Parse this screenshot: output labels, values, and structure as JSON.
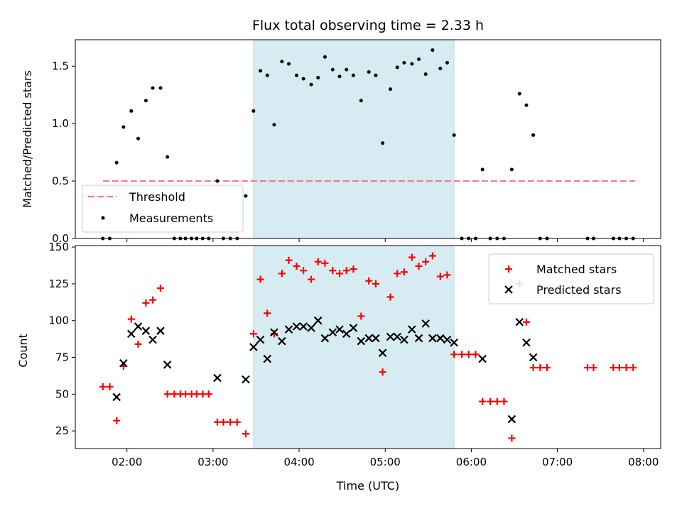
{
  "chart_data": {
    "title": "Flux total observing time = 2.33 h",
    "type": "scatter",
    "x_unit": "hours (UTC)",
    "x_range": [
      1.4,
      8.2
    ],
    "x_ticks": [
      2,
      3,
      4,
      5,
      6,
      7,
      8
    ],
    "x_tick_labels": [
      "02:00",
      "03:00",
      "04:00",
      "05:00",
      "06:00",
      "07:00",
      "08:00"
    ],
    "xlabel": "Time (UTC)",
    "shaded_interval": {
      "start": 3.47,
      "end": 5.8,
      "color": "#add8e6"
    },
    "panels": [
      {
        "ylabel": "Matched/Predicted stars",
        "ylim": [
          0,
          1.73
        ],
        "y_ticks": [
          0.0,
          0.5,
          1.0,
          1.5
        ],
        "y_tick_labels": [
          "0.0",
          "0.5",
          "1.0",
          "1.5"
        ],
        "legend_position": "bottom-left",
        "threshold": {
          "name": "Threshold",
          "value": 0.5,
          "x_start": 1.72,
          "x_end": 7.9,
          "color": "#f08080"
        },
        "series": [
          {
            "name": "Measurements",
            "marker": "dot",
            "color": "#000000",
            "points": [
              [
                1.72,
                0.0
              ],
              [
                1.8,
                0.0
              ],
              [
                1.88,
                0.66
              ],
              [
                1.96,
                0.97
              ],
              [
                2.05,
                1.11
              ],
              [
                2.13,
                0.87
              ],
              [
                2.22,
                1.2
              ],
              [
                2.3,
                1.31
              ],
              [
                2.39,
                1.31
              ],
              [
                2.47,
                0.71
              ],
              [
                2.55,
                0.0
              ],
              [
                2.62,
                0.0
              ],
              [
                2.68,
                0.0
              ],
              [
                2.75,
                0.0
              ],
              [
                2.81,
                0.0
              ],
              [
                2.88,
                0.0
              ],
              [
                2.95,
                0.0
              ],
              [
                3.05,
                0.5
              ],
              [
                3.12,
                0.0
              ],
              [
                3.2,
                0.0
              ],
              [
                3.28,
                0.0
              ],
              [
                3.38,
                0.37
              ],
              [
                3.47,
                1.11
              ],
              [
                3.55,
                1.46
              ],
              [
                3.63,
                1.42
              ],
              [
                3.71,
                0.99
              ],
              [
                3.8,
                1.54
              ],
              [
                3.88,
                1.52
              ],
              [
                3.97,
                1.42
              ],
              [
                4.05,
                1.39
              ],
              [
                4.14,
                1.34
              ],
              [
                4.22,
                1.4
              ],
              [
                4.3,
                1.58
              ],
              [
                4.39,
                1.47
              ],
              [
                4.47,
                1.41
              ],
              [
                4.55,
                1.47
              ],
              [
                4.63,
                1.42
              ],
              [
                4.72,
                1.2
              ],
              [
                4.81,
                1.45
              ],
              [
                4.89,
                1.42
              ],
              [
                4.97,
                0.83
              ],
              [
                5.06,
                1.3
              ],
              [
                5.14,
                1.49
              ],
              [
                5.22,
                1.53
              ],
              [
                5.31,
                1.52
              ],
              [
                5.39,
                1.56
              ],
              [
                5.47,
                1.43
              ],
              [
                5.55,
                1.64
              ],
              [
                5.64,
                1.48
              ],
              [
                5.72,
                1.53
              ],
              [
                5.8,
                0.9
              ],
              [
                5.89,
                0.0
              ],
              [
                5.97,
                0.0
              ],
              [
                6.05,
                0.0
              ],
              [
                6.13,
                0.6
              ],
              [
                6.22,
                0.0
              ],
              [
                6.3,
                0.0
              ],
              [
                6.38,
                0.0
              ],
              [
                6.47,
                0.6
              ],
              [
                6.56,
                1.26
              ],
              [
                6.64,
                1.16
              ],
              [
                6.72,
                0.9
              ],
              [
                6.8,
                0.0
              ],
              [
                6.88,
                0.0
              ],
              [
                7.35,
                0.0
              ],
              [
                7.42,
                0.0
              ],
              [
                7.65,
                0.0
              ],
              [
                7.72,
                0.0
              ],
              [
                7.8,
                0.0
              ],
              [
                7.88,
                0.0
              ]
            ]
          }
        ]
      },
      {
        "ylabel": "Count",
        "ylim": [
          13,
          151
        ],
        "y_ticks": [
          25,
          50,
          75,
          100,
          125,
          150
        ],
        "y_tick_labels": [
          "25",
          "50",
          "75",
          "100",
          "125",
          "150"
        ],
        "legend_position": "top-right",
        "series": [
          {
            "name": "Matched stars",
            "marker": "plus",
            "color": "#ff0000",
            "points": [
              [
                1.72,
                55
              ],
              [
                1.8,
                55
              ],
              [
                1.88,
                32
              ],
              [
                1.96,
                69
              ],
              [
                2.05,
                101
              ],
              [
                2.13,
                84
              ],
              [
                2.22,
                112
              ],
              [
                2.3,
                114
              ],
              [
                2.39,
                122
              ],
              [
                2.47,
                50
              ],
              [
                2.55,
                50
              ],
              [
                2.62,
                50
              ],
              [
                2.68,
                50
              ],
              [
                2.75,
                50
              ],
              [
                2.81,
                50
              ],
              [
                2.88,
                50
              ],
              [
                2.95,
                50
              ],
              [
                3.05,
                31
              ],
              [
                3.12,
                31
              ],
              [
                3.2,
                31
              ],
              [
                3.28,
                31
              ],
              [
                3.38,
                23
              ],
              [
                3.47,
                91
              ],
              [
                3.55,
                128
              ],
              [
                3.63,
                105
              ],
              [
                3.71,
                91
              ],
              [
                3.8,
                132
              ],
              [
                3.88,
                141
              ],
              [
                3.97,
                137
              ],
              [
                4.05,
                134
              ],
              [
                4.14,
                128
              ],
              [
                4.22,
                140
              ],
              [
                4.3,
                139
              ],
              [
                4.39,
                134
              ],
              [
                4.47,
                132
              ],
              [
                4.55,
                134
              ],
              [
                4.63,
                135
              ],
              [
                4.72,
                103
              ],
              [
                4.81,
                127
              ],
              [
                4.89,
                125
              ],
              [
                4.97,
                65
              ],
              [
                5.06,
                116
              ],
              [
                5.14,
                132
              ],
              [
                5.22,
                133
              ],
              [
                5.31,
                143
              ],
              [
                5.39,
                137
              ],
              [
                5.47,
                140
              ],
              [
                5.55,
                144
              ],
              [
                5.64,
                130
              ],
              [
                5.72,
                131
              ],
              [
                5.8,
                77
              ],
              [
                5.89,
                77
              ],
              [
                5.97,
                77
              ],
              [
                6.05,
                77
              ],
              [
                6.13,
                45
              ],
              [
                6.22,
                45
              ],
              [
                6.3,
                45
              ],
              [
                6.38,
                45
              ],
              [
                6.47,
                20
              ],
              [
                6.56,
                125
              ],
              [
                6.64,
                99
              ],
              [
                6.72,
                68
              ],
              [
                6.8,
                68
              ],
              [
                6.88,
                68
              ],
              [
                7.35,
                68
              ],
              [
                7.42,
                68
              ],
              [
                7.65,
                68
              ],
              [
                7.72,
                68
              ],
              [
                7.8,
                68
              ],
              [
                7.88,
                68
              ]
            ]
          },
          {
            "name": "Predicted stars",
            "marker": "x",
            "color": "#000000",
            "points": [
              [
                1.88,
                48
              ],
              [
                1.96,
                71
              ],
              [
                2.05,
                91
              ],
              [
                2.13,
                96
              ],
              [
                2.22,
                93
              ],
              [
                2.3,
                87
              ],
              [
                2.39,
                93
              ],
              [
                2.47,
                70
              ],
              [
                3.05,
                61
              ],
              [
                3.38,
                60
              ],
              [
                3.47,
                82
              ],
              [
                3.55,
                87
              ],
              [
                3.63,
                74
              ],
              [
                3.71,
                92
              ],
              [
                3.8,
                86
              ],
              [
                3.88,
                94
              ],
              [
                3.97,
                96
              ],
              [
                4.05,
                96
              ],
              [
                4.14,
                95
              ],
              [
                4.22,
                100
              ],
              [
                4.3,
                88
              ],
              [
                4.39,
                92
              ],
              [
                4.47,
                94
              ],
              [
                4.55,
                91
              ],
              [
                4.63,
                95
              ],
              [
                4.72,
                86
              ],
              [
                4.81,
                88
              ],
              [
                4.89,
                88
              ],
              [
                4.97,
                78
              ],
              [
                5.06,
                89
              ],
              [
                5.14,
                89
              ],
              [
                5.22,
                87
              ],
              [
                5.31,
                94
              ],
              [
                5.39,
                88
              ],
              [
                5.47,
                98
              ],
              [
                5.55,
                88
              ],
              [
                5.64,
                88
              ],
              [
                5.72,
                87
              ],
              [
                5.8,
                85
              ],
              [
                6.13,
                74
              ],
              [
                6.47,
                33
              ],
              [
                6.56,
                99
              ],
              [
                6.64,
                85
              ],
              [
                6.72,
                75
              ]
            ]
          }
        ]
      }
    ]
  }
}
